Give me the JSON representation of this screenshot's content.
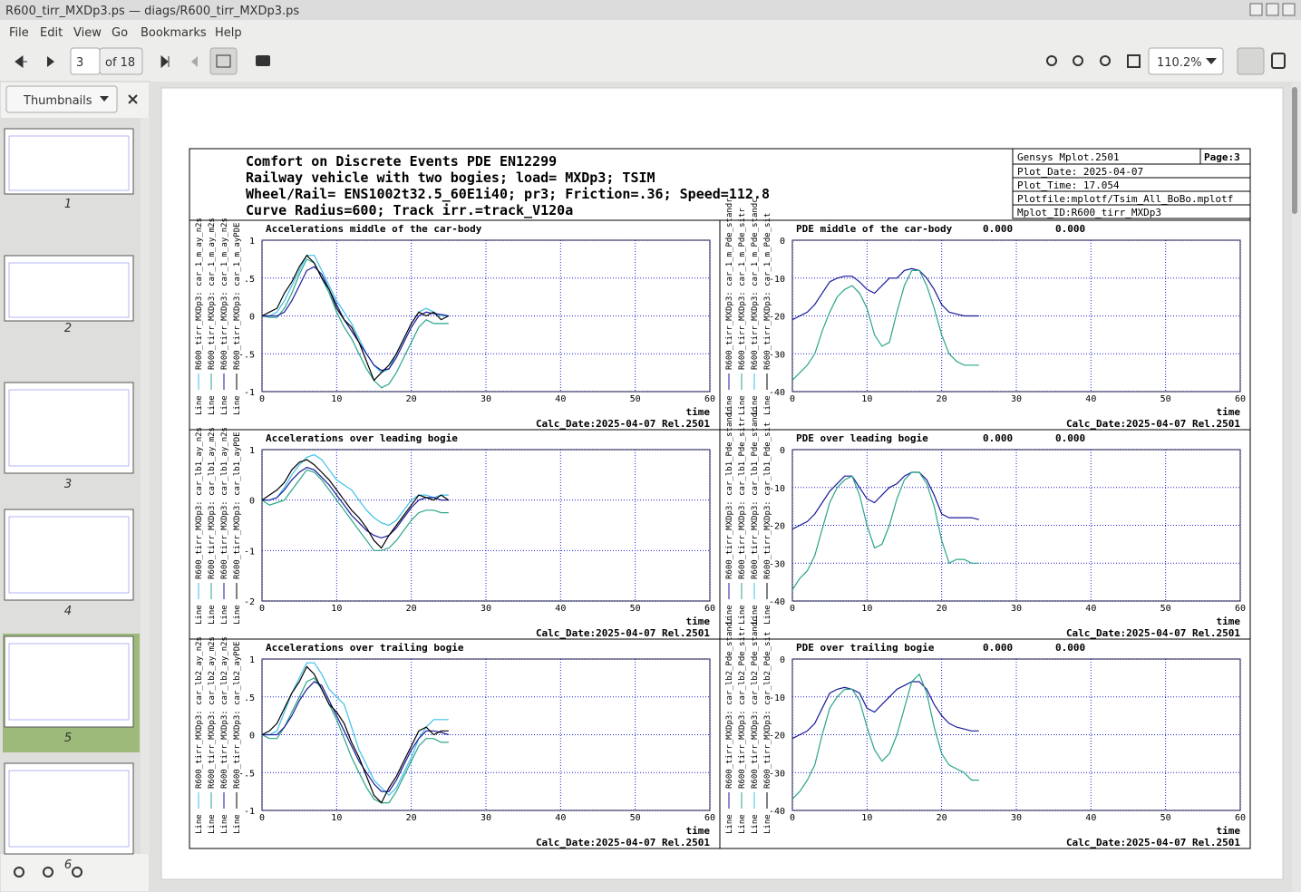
{
  "window": {
    "title": "R600_tirr_MXDp3.ps — diags/R600_tirr_MXDp3.ps"
  },
  "menu": [
    "File",
    "Edit",
    "View",
    "Go",
    "Bookmarks",
    "Help"
  ],
  "toolbar": {
    "page": "3",
    "page_count": "of 18",
    "zoom": "110.2%"
  },
  "sidebar": {
    "mode": "Thumbnails",
    "pages": [
      "1",
      "2",
      "3",
      "4",
      "5",
      "6"
    ]
  },
  "document": {
    "header": [
      "Comfort on Discrete Events PDE EN12299",
      "Railway vehicle with two bogies; load= MXDp3; TSIM",
      "Wheel/Rail= ENS1002t32.5_60E1i40; pr3; Friction=.36; Speed=112.8",
      "Curve Radius=600; Track irr.=track_V120a"
    ],
    "info": {
      "program": "Gensys Mplot.2501",
      "page": "Page:3",
      "lines": [
        "Plot_Date: 2025-04-07",
        "Plot_Time: 17.054",
        "Plotfile:mplotf/Tsim_All_BoBo.mplotf",
        "Mplot_ID:R600_tirr_MXDp3"
      ]
    },
    "legend_prefix": "Line"
  },
  "chart_data": [
    {
      "type": "line",
      "title": "Accelerations middle of the car-body",
      "xlabel": "time",
      "footer": "Calc_Date:2025-04-07 Rel.2501",
      "grid": true,
      "x": [
        0,
        1,
        2,
        3,
        4,
        5,
        6,
        7,
        8,
        9,
        10,
        11,
        12,
        13,
        14,
        15,
        16,
        17,
        18,
        19,
        20,
        21,
        22,
        23,
        24,
        25
      ],
      "xlim": [
        0,
        60
      ],
      "xticks": [
        0,
        10,
        20,
        30,
        40,
        50,
        60
      ],
      "ylim": [
        -1,
        1
      ],
      "yticks": [
        -1,
        {
          "value": -0.5,
          "label": "-.5"
        },
        0,
        {
          "value": 0.5,
          "label": ".5"
        },
        1
      ],
      "series": [
        {
          "name": "R600_tirr_MXDp3: car_1_m_ay_n2s",
          "color": "#3fc0e8",
          "values": [
            0,
            0,
            0.05,
            0.2,
            0.4,
            0.6,
            0.8,
            0.8,
            0.6,
            0.4,
            0.2,
            0.05,
            -0.1,
            -0.3,
            -0.5,
            -0.65,
            -0.75,
            -0.7,
            -0.5,
            -0.3,
            -0.1,
            0.05,
            0.1,
            0.05,
            0,
            0
          ]
        },
        {
          "name": "R600_tirr_MXDp3: car_1_m_ay_m2s",
          "color": "#2aa58a",
          "values": [
            0,
            -0.02,
            -0.02,
            0.1,
            0.3,
            0.55,
            0.75,
            0.7,
            0.5,
            0.3,
            0.05,
            -0.15,
            -0.3,
            -0.5,
            -0.7,
            -0.85,
            -0.95,
            -0.9,
            -0.75,
            -0.55,
            -0.35,
            -0.15,
            -0.05,
            -0.1,
            -0.1,
            -0.1
          ]
        },
        {
          "name": "R600_tirr_MXDp3: car_1_m_ay_n2s",
          "color": "#1a1a9a",
          "values": [
            0,
            0,
            0,
            0.05,
            0.2,
            0.4,
            0.6,
            0.65,
            0.55,
            0.35,
            0.15,
            -0.05,
            -0.2,
            -0.35,
            -0.5,
            -0.65,
            -0.72,
            -0.7,
            -0.55,
            -0.35,
            -0.15,
            0,
            0.05,
            0.03,
            0.02,
            0
          ]
        },
        {
          "name": "R600_tirr_MXDp3: car_1_m_ayPDE",
          "color": "#000000",
          "values": [
            0,
            0.05,
            0.1,
            0.3,
            0.45,
            0.65,
            0.8,
            0.7,
            0.5,
            0.35,
            0.1,
            -0.05,
            -0.15,
            -0.35,
            -0.6,
            -0.85,
            -0.75,
            -0.65,
            -0.5,
            -0.3,
            -0.1,
            0.05,
            0,
            0.05,
            -0.05,
            0
          ]
        }
      ]
    },
    {
      "type": "line",
      "title": "PDE middle of the car-body",
      "stats": [
        "0.000",
        "0.000"
      ],
      "xlabel": "time",
      "footer": "Calc_Date:2025-04-07 Rel.2501",
      "grid": true,
      "x": [
        0,
        1,
        2,
        3,
        4,
        5,
        6,
        7,
        8,
        9,
        10,
        11,
        12,
        13,
        14,
        15,
        16,
        17,
        18,
        19,
        20,
        21,
        22,
        23,
        24,
        25
      ],
      "xlim": [
        0,
        60
      ],
      "xticks": [
        0,
        10,
        20,
        30,
        40,
        50,
        60
      ],
      "ylim": [
        -40,
        0
      ],
      "yticks": [
        -40,
        -30,
        -20,
        -10,
        0
      ],
      "series": [
        {
          "name": "R600_tirr_MXDp3: car_1_m_Pde_standr",
          "color": "#1a1a9a",
          "values": [
            -21,
            -20,
            -19,
            -17,
            -14,
            -11,
            -10,
            -9.5,
            -9.5,
            -11,
            -13,
            -14,
            -12,
            -10,
            -10,
            -8,
            -7.5,
            -8,
            -10,
            -13,
            -17,
            -19,
            -19.5,
            -20,
            -20,
            -20
          ]
        },
        {
          "name": "R600_tirr_MXDp3: car_1_m_Pde_sitr",
          "color": "#2aa58a",
          "values": [
            -37,
            -35,
            -33,
            -30,
            -24,
            -19,
            -15,
            -13,
            -12,
            -14,
            -18,
            -25,
            -28,
            -27,
            -19,
            -12,
            -8,
            -8,
            -12,
            -18,
            -25,
            -30,
            -32,
            -33,
            -33,
            -33
          ]
        }
      ],
      "other_legend": [
        {
          "name": "R600_tirr_MXDp3: car_1_m_Pde_standc",
          "color": "#3fc0e8"
        },
        {
          "name": "R600_tirr_MXDp3: car_1_m_Pde_sit",
          "color": "#000000"
        }
      ]
    },
    {
      "type": "line",
      "title": "Accelerations over leading bogie",
      "xlabel": "time",
      "footer": "Calc_Date:2025-04-07 Rel.2501",
      "grid": true,
      "x": [
        0,
        1,
        2,
        3,
        4,
        5,
        6,
        7,
        8,
        9,
        10,
        11,
        12,
        13,
        14,
        15,
        16,
        17,
        18,
        19,
        20,
        21,
        22,
        23,
        24,
        25
      ],
      "xlim": [
        0,
        60
      ],
      "xticks": [
        0,
        10,
        20,
        30,
        40,
        50,
        60
      ],
      "ylim": [
        -2,
        1
      ],
      "yticks": [
        -2,
        -1,
        0,
        1
      ],
      "series": [
        {
          "name": "R600_tirr_MXDp3: car_lb1_ay_n2s",
          "color": "#3fc0e8",
          "values": [
            0,
            0,
            0.05,
            0.25,
            0.5,
            0.7,
            0.85,
            0.9,
            0.8,
            0.6,
            0.4,
            0.3,
            0.2,
            0,
            -0.2,
            -0.35,
            -0.45,
            -0.5,
            -0.4,
            -0.2,
            0,
            0.1,
            0.1,
            0.05,
            0.1,
            0.1
          ]
        },
        {
          "name": "R600_tirr_MXDp3: car_lb1_ay_m2s",
          "color": "#2aa58a",
          "values": [
            0,
            -0.1,
            -0.05,
            0,
            0.2,
            0.4,
            0.6,
            0.55,
            0.4,
            0.2,
            0,
            -0.2,
            -0.4,
            -0.6,
            -0.8,
            -1,
            -1,
            -0.95,
            -0.8,
            -0.6,
            -0.4,
            -0.25,
            -0.2,
            -0.2,
            -0.25,
            -0.25
          ]
        },
        {
          "name": "R600_tirr_MXDp3: car_lb1_ay_n2s",
          "color": "#1a1a9a",
          "values": [
            0,
            0,
            0.05,
            0.2,
            0.4,
            0.55,
            0.65,
            0.6,
            0.45,
            0.3,
            0.1,
            -0.1,
            -0.3,
            -0.45,
            -0.6,
            -0.7,
            -0.75,
            -0.7,
            -0.55,
            -0.35,
            -0.15,
            0,
            0.05,
            0.05,
            0,
            0
          ]
        },
        {
          "name": "R600_tirr_MXDp3: car_lb1_ayPDE",
          "color": "#000000",
          "values": [
            0,
            0.1,
            0.2,
            0.35,
            0.6,
            0.75,
            0.8,
            0.7,
            0.55,
            0.4,
            0.2,
            0,
            -0.2,
            -0.35,
            -0.55,
            -0.8,
            -0.95,
            -0.7,
            -0.5,
            -0.3,
            -0.1,
            0.1,
            0.05,
            0,
            0.1,
            0
          ]
        }
      ]
    },
    {
      "type": "line",
      "title": "PDE over leading bogie",
      "stats": [
        "0.000",
        "0.000"
      ],
      "xlabel": "time",
      "footer": "Calc_Date:2025-04-07 Rel.2501",
      "grid": true,
      "x": [
        0,
        1,
        2,
        3,
        4,
        5,
        6,
        7,
        8,
        9,
        10,
        11,
        12,
        13,
        14,
        15,
        16,
        17,
        18,
        19,
        20,
        21,
        22,
        23,
        24,
        25
      ],
      "xlim": [
        0,
        60
      ],
      "xticks": [
        0,
        10,
        20,
        30,
        40,
        50,
        60
      ],
      "ylim": [
        -40,
        0
      ],
      "yticks": [
        -40,
        -30,
        -20,
        -10,
        0
      ],
      "series": [
        {
          "name": "R600_tirr_MXDp3: car_lb1_Pde_standr",
          "color": "#1a1a9a",
          "values": [
            -21,
            -20,
            -19,
            -17,
            -14,
            -11,
            -9,
            -7,
            -7,
            -10,
            -13,
            -14,
            -12,
            -10,
            -9,
            -7,
            -6,
            -6,
            -8,
            -12,
            -17,
            -18,
            -18,
            -18,
            -18,
            -18.5
          ]
        },
        {
          "name": "R600_tirr_MXDp3: car_lb1_Pde_sitr",
          "color": "#2aa58a",
          "values": [
            -37,
            -34,
            -32,
            -28,
            -21,
            -14,
            -10,
            -8,
            -7,
            -12,
            -20,
            -26,
            -25,
            -20,
            -13,
            -8,
            -6,
            -6,
            -9,
            -15,
            -24,
            -30,
            -29,
            -29,
            -30,
            -30
          ]
        }
      ],
      "other_legend": [
        {
          "name": "R600_tirr_MXDp3: car_lb1_Pde_standc",
          "color": "#3fc0e8"
        },
        {
          "name": "R600_tirr_MXDp3: car_lb1_Pde_sit",
          "color": "#000000"
        }
      ]
    },
    {
      "type": "line",
      "title": "Accelerations over trailing bogie",
      "xlabel": "time",
      "footer": "Calc_Date:2025-04-07 Rel.2501",
      "grid": true,
      "x": [
        0,
        1,
        2,
        3,
        4,
        5,
        6,
        7,
        8,
        9,
        10,
        11,
        12,
        13,
        14,
        15,
        16,
        17,
        18,
        19,
        20,
        21,
        22,
        23,
        24,
        25
      ],
      "xlim": [
        0,
        60
      ],
      "xticks": [
        0,
        10,
        20,
        30,
        40,
        50,
        60
      ],
      "ylim": [
        -1,
        1
      ],
      "yticks": [
        -1,
        {
          "value": -0.5,
          "label": "-.5"
        },
        0,
        {
          "value": 0.5,
          "label": ".5"
        },
        1
      ],
      "series": [
        {
          "name": "R600_tirr_MXDp3: car_lb2_ay_n2s",
          "color": "#3fc0e8",
          "values": [
            0,
            0,
            0.05,
            0.3,
            0.55,
            0.75,
            0.95,
            0.95,
            0.8,
            0.6,
            0.5,
            0.4,
            0.1,
            -0.2,
            -0.4,
            -0.6,
            -0.7,
            -0.8,
            -0.7,
            -0.5,
            -0.3,
            -0.05,
            0.1,
            0.2,
            0.2,
            0.2
          ]
        },
        {
          "name": "R600_tirr_MXDp3: car_lb2_ay_m2s",
          "color": "#2aa58a",
          "values": [
            0,
            -0.05,
            -0.05,
            0.1,
            0.3,
            0.5,
            0.7,
            0.75,
            0.6,
            0.4,
            0.2,
            -0.05,
            -0.3,
            -0.5,
            -0.7,
            -0.85,
            -0.9,
            -0.9,
            -0.75,
            -0.55,
            -0.35,
            -0.15,
            -0.05,
            -0.05,
            -0.1,
            -0.1
          ]
        },
        {
          "name": "R600_tirr_MXDp3: car_lb2_ay_n2s",
          "color": "#1a1a9a",
          "values": [
            0,
            0,
            0,
            0.1,
            0.25,
            0.45,
            0.6,
            0.7,
            0.65,
            0.45,
            0.25,
            0.05,
            -0.15,
            -0.35,
            -0.5,
            -0.65,
            -0.75,
            -0.75,
            -0.6,
            -0.4,
            -0.2,
            -0.05,
            0.05,
            0.05,
            0.03,
            0
          ]
        },
        {
          "name": "R600_tirr_MXDp3: car_lb2_ayPDE",
          "color": "#000000",
          "values": [
            0,
            0.05,
            0.15,
            0.35,
            0.55,
            0.7,
            0.9,
            0.8,
            0.6,
            0.4,
            0.3,
            0.15,
            -0.1,
            -0.3,
            -0.55,
            -0.8,
            -0.9,
            -0.7,
            -0.55,
            -0.35,
            -0.15,
            0.05,
            0.1,
            0,
            0.05,
            0.05
          ]
        }
      ]
    },
    {
      "type": "line",
      "title": "PDE over trailing bogie",
      "stats": [
        "0.000",
        "0.000"
      ],
      "xlabel": "time",
      "footer": "Calc_Date:2025-04-07 Rel.2501",
      "grid": true,
      "x": [
        0,
        1,
        2,
        3,
        4,
        5,
        6,
        7,
        8,
        9,
        10,
        11,
        12,
        13,
        14,
        15,
        16,
        17,
        18,
        19,
        20,
        21,
        22,
        23,
        24,
        25
      ],
      "xlim": [
        0,
        60
      ],
      "xticks": [
        0,
        10,
        20,
        30,
        40,
        50,
        60
      ],
      "ylim": [
        -40,
        0
      ],
      "yticks": [
        -40,
        -30,
        -20,
        -10,
        0
      ],
      "series": [
        {
          "name": "R600_tirr_MXDp3: car_lb2_Pde_standr",
          "color": "#1a1a9a",
          "values": [
            -21,
            -20,
            -19,
            -17,
            -13,
            -9,
            -8,
            -7.5,
            -8,
            -9,
            -13,
            -14,
            -12,
            -10,
            -8,
            -7,
            -6,
            -6,
            -8,
            -12,
            -15,
            -17,
            -18,
            -18.5,
            -19,
            -19
          ]
        },
        {
          "name": "R600_tirr_MXDp3: car_lb2_Pde_sitr",
          "color": "#2aa58a",
          "values": [
            -37,
            -35,
            -32,
            -28,
            -20,
            -13,
            -10,
            -8,
            -8,
            -11,
            -18,
            -24,
            -27,
            -25,
            -20,
            -13,
            -6,
            -4,
            -9,
            -18,
            -25,
            -28,
            -29,
            -30,
            -32,
            -32
          ]
        }
      ],
      "other_legend": [
        {
          "name": "R600_tirr_MXDp3: car_lb2_Pde_standc",
          "color": "#3fc0e8"
        },
        {
          "name": "R600_tirr_MXDp3: car_lb2_Pde_sit",
          "color": "#000000"
        }
      ]
    }
  ]
}
